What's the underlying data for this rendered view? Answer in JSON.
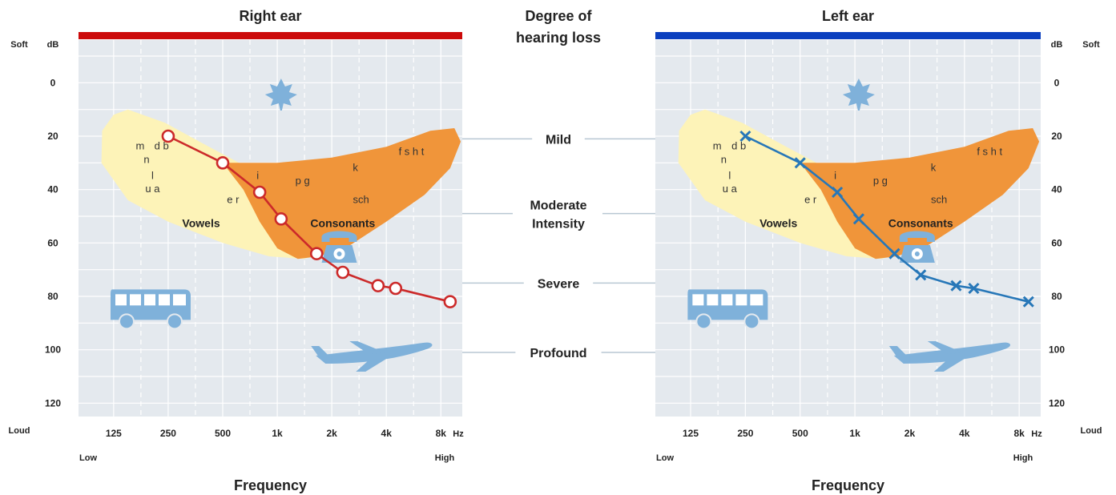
{
  "center": {
    "header": "Degree of hearing loss",
    "header_lines": [
      "Degree of",
      "hearing loss"
    ],
    "degrees": [
      {
        "label": "Mild",
        "db": 21
      },
      {
        "label": "Moderate",
        "db": 49
      },
      {
        "label": "Intensity",
        "db": 49
      },
      {
        "label": "Severe",
        "db": 75
      },
      {
        "label": "Profound",
        "db": 101
      }
    ],
    "colors": {
      "line": "#b8c7d3"
    }
  },
  "speech_banana": {
    "vowels_label": "Vowels",
    "consonants_label": "Consonants",
    "sounds": [
      {
        "text": "m",
        "freq": 175,
        "db": 25
      },
      {
        "text": "d b",
        "freq": 230,
        "db": 25
      },
      {
        "text": "n",
        "freq": 190,
        "db": 30
      },
      {
        "text": "l",
        "freq": 205,
        "db": 36
      },
      {
        "text": "u a",
        "freq": 205,
        "db": 41
      },
      {
        "text": "e r",
        "freq": 570,
        "db": 45
      },
      {
        "text": "i",
        "freq": 780,
        "db": 36
      },
      {
        "text": "p g",
        "freq": 1380,
        "db": 38
      },
      {
        "text": "k",
        "freq": 2700,
        "db": 33
      },
      {
        "text": "sch",
        "freq": 2900,
        "db": 45
      },
      {
        "text": "f s h t",
        "freq": 5500,
        "db": 27
      }
    ],
    "region_label_positions": [
      {
        "key": "vowels",
        "freq": 380,
        "db": 54
      },
      {
        "key": "consonants",
        "freq": 2300,
        "db": 54
      }
    ],
    "colors": {
      "vowels": "#fdf3b8",
      "consonants": "#f0953a"
    }
  },
  "icons": [
    "leaf-icon",
    "telephone-icon",
    "bus-icon",
    "airplane-icon"
  ],
  "chart_data": [
    {
      "type": "line",
      "title": "Right ear",
      "xlabel": "Frequency",
      "ylabel": "dB",
      "x_unit": "Hz",
      "x_scale": "log",
      "x_ticks": [
        "125",
        "250",
        "500",
        "1k",
        "2k",
        "4k",
        "8k"
      ],
      "x_tick_values": [
        125,
        250,
        500,
        1000,
        2000,
        4000,
        8000
      ],
      "x_end_labels": {
        "low": "Low",
        "high": "High"
      },
      "y_ticks": [
        0,
        20,
        40,
        60,
        80,
        100,
        120
      ],
      "y_end_labels": {
        "soft": "Soft",
        "loud": "Loud"
      },
      "ylim": [
        -16,
        125
      ],
      "y_inverted": true,
      "grid": true,
      "marker": "circle",
      "color": "#cc2a2a",
      "header_color": "#cc0a0a",
      "series": [
        {
          "x": [
            250,
            500,
            800,
            1050,
            1650,
            2300,
            3600,
            4500,
            9000
          ],
          "y": [
            20,
            30,
            41,
            51,
            64,
            71,
            76,
            77,
            82
          ]
        }
      ]
    },
    {
      "type": "line",
      "title": "Left ear",
      "xlabel": "Frequency",
      "ylabel": "dB",
      "x_unit": "Hz",
      "x_scale": "log",
      "x_ticks": [
        "125",
        "250",
        "500",
        "1k",
        "2k",
        "4k",
        "8k"
      ],
      "x_tick_values": [
        125,
        250,
        500,
        1000,
        2000,
        4000,
        8000
      ],
      "x_end_labels": {
        "low": "Low",
        "high": "High"
      },
      "y_ticks": [
        0,
        20,
        40,
        60,
        80,
        100,
        120
      ],
      "y_end_labels": {
        "soft": "Soft",
        "loud": "Loud"
      },
      "ylim": [
        -16,
        125
      ],
      "y_inverted": true,
      "grid": true,
      "marker": "x",
      "color": "#2777b8",
      "header_color": "#0a3fbf",
      "series": [
        {
          "x": [
            250,
            500,
            800,
            1050,
            1650,
            2300,
            3600,
            4500,
            9000
          ],
          "y": [
            20,
            30,
            41,
            51,
            64,
            72,
            76,
            77,
            82
          ]
        }
      ]
    }
  ]
}
